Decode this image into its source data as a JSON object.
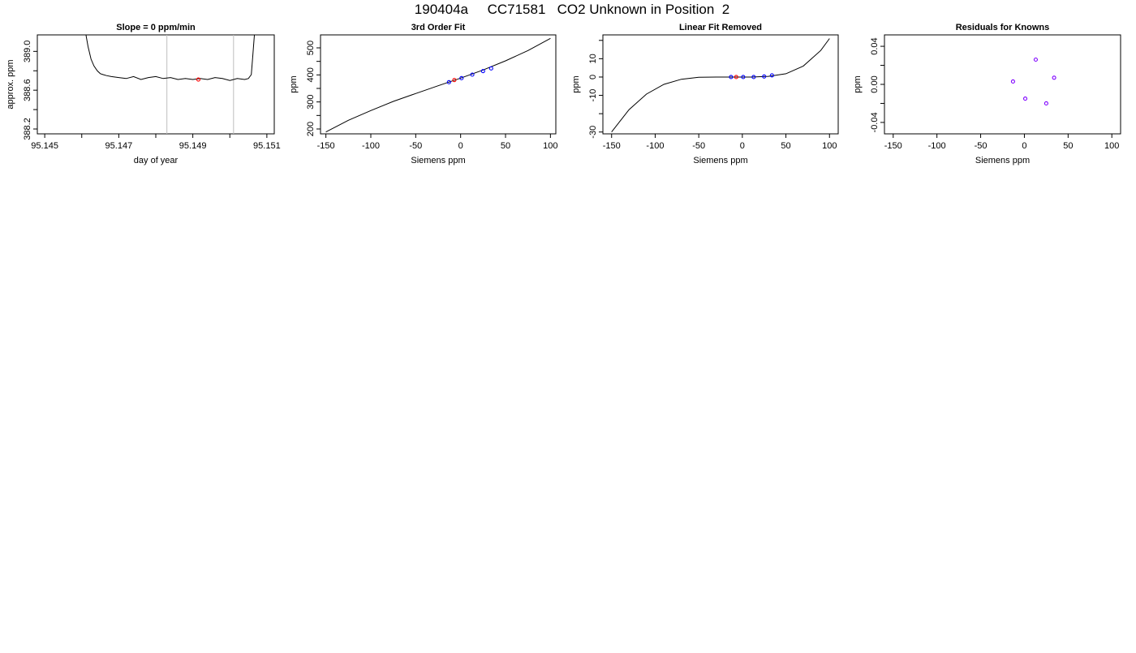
{
  "figure": {
    "title": "190404a     CC71581   CO2 Unknown in Position  2",
    "colors": {
      "axis": "#000000",
      "marker_known": "#0000ff",
      "marker_unknown": "#ff0000",
      "marker_residual": "#7f00ff",
      "guide": "#bebebe"
    }
  },
  "chart_data": [
    {
      "id": "p1",
      "type": "line",
      "title": "Slope =  0  ppm/min",
      "xlabel": "day of year",
      "ylabel": "approx. ppm",
      "xlim": [
        95.1448,
        95.1512
      ],
      "ylim": [
        388.15,
        389.17
      ],
      "x_ticks": [
        95.145,
        95.146,
        95.147,
        95.148,
        95.149,
        95.15,
        95.151
      ],
      "x_tick_labels": [
        "95.145",
        "",
        "95.147",
        "",
        "95.149",
        "",
        "95.151"
      ],
      "y_ticks": [
        388.2,
        388.4,
        388.6,
        388.8,
        389.0
      ],
      "y_tick_labels": [
        "388.2",
        "",
        "388.6",
        "",
        "389.0"
      ],
      "vlines": [
        95.1483,
        95.1501
      ],
      "series": [
        {
          "style": "line",
          "x": [
            95.1461,
            95.14617,
            95.14625,
            95.14633,
            95.14642,
            95.1465,
            95.14658,
            95.14667,
            95.1468,
            95.147,
            95.1472,
            95.1474,
            95.1476,
            95.1478,
            95.148,
            95.1482,
            95.1484,
            95.1486,
            95.1488,
            95.149,
            95.1492,
            95.1494,
            95.1496,
            95.1498,
            95.15,
            95.1502,
            95.1504,
            95.1505,
            95.15058,
            95.15062,
            95.15067
          ],
          "y": [
            389.2,
            389.05,
            388.92,
            388.85,
            388.8,
            388.77,
            388.76,
            388.75,
            388.74,
            388.73,
            388.72,
            388.74,
            388.71,
            388.73,
            388.74,
            388.72,
            388.73,
            388.71,
            388.72,
            388.71,
            388.72,
            388.71,
            388.73,
            388.72,
            388.7,
            388.72,
            388.71,
            388.72,
            388.76,
            388.95,
            389.2
          ]
        },
        {
          "style": "points",
          "x": [
            95.14915
          ],
          "y": [
            388.71
          ]
        }
      ]
    },
    {
      "id": "p2",
      "type": "scatter",
      "title": "3rd Order Fit",
      "xlabel": "Siemens ppm",
      "ylabel": "ppm",
      "xlim": [
        -156,
        106
      ],
      "ylim": [
        182,
        548
      ],
      "x_ticks": [
        -150,
        -100,
        -50,
        0,
        50,
        100
      ],
      "x_tick_labels": [
        "-150",
        "-100",
        "-50",
        "0",
        "50",
        "100"
      ],
      "y_ticks": [
        200,
        250,
        300,
        350,
        400,
        450,
        500
      ],
      "y_tick_labels": [
        "200",
        "",
        "300",
        "",
        "400",
        "",
        "500"
      ],
      "series": [
        {
          "style": "line",
          "x": [
            -150,
            -125,
            -100,
            -75,
            -50,
            -25,
            0,
            25,
            50,
            75,
            100
          ],
          "y": [
            189,
            232,
            268,
            302,
            331,
            360,
            388,
            418,
            452,
            490,
            535
          ]
        },
        {
          "style": "points",
          "role": "known",
          "x": [
            -13,
            1,
            13,
            25,
            34
          ],
          "y": [
            373,
            388,
            401,
            414,
            424
          ]
        },
        {
          "style": "points",
          "role": "unknown",
          "x": [
            -7
          ],
          "y": [
            381
          ]
        }
      ]
    },
    {
      "id": "p3",
      "type": "scatter",
      "title": "Linear Fit Removed",
      "xlabel": "Siemens ppm",
      "ylabel": "ppm",
      "xlim": [
        -160,
        110
      ],
      "ylim": [
        -31,
        23
      ],
      "x_ticks": [
        -150,
        -100,
        -50,
        0,
        50,
        100
      ],
      "x_tick_labels": [
        "-150",
        "-100",
        "-50",
        "0",
        "50",
        "100"
      ],
      "y_ticks": [
        -30,
        -20,
        -10,
        0,
        10,
        20
      ],
      "y_tick_labels": [
        "-30",
        "",
        "-10",
        "0",
        "10",
        ""
      ],
      "series": [
        {
          "style": "line",
          "x": [
            -150,
            -130,
            -110,
            -90,
            -70,
            -50,
            -30,
            -10,
            10,
            30,
            50,
            70,
            90,
            100
          ],
          "y": [
            -30,
            -17.8,
            -9.3,
            -4,
            -1.2,
            -0.1,
            0,
            0,
            0,
            0.4,
            1.8,
            6,
            14.5,
            21
          ]
        },
        {
          "style": "points",
          "role": "known",
          "x": [
            -13,
            1,
            13,
            25,
            34
          ],
          "y": [
            0,
            0,
            0,
            0.3,
            0.9
          ]
        },
        {
          "style": "points",
          "role": "unknown",
          "x": [
            -7
          ],
          "y": [
            0
          ]
        }
      ]
    },
    {
      "id": "p4",
      "type": "scatter",
      "title": "Residuals for Knowns",
      "xlabel": "Siemens ppm",
      "ylabel": "ppm",
      "xlim": [
        -160,
        110
      ],
      "ylim": [
        -0.052,
        0.052
      ],
      "x_ticks": [
        -150,
        -100,
        -50,
        0,
        50,
        100
      ],
      "x_tick_labels": [
        "-150",
        "-100",
        "-50",
        "0",
        "50",
        "100"
      ],
      "y_ticks": [
        -0.04,
        -0.02,
        0.0,
        0.02,
        0.04
      ],
      "y_tick_labels": [
        "-0.04",
        "",
        "0.00",
        "",
        "0.04"
      ],
      "series": [
        {
          "style": "points",
          "role": "residual",
          "x": [
            -13,
            1,
            13,
            25,
            34
          ],
          "y": [
            0.003,
            -0.015,
            0.026,
            -0.02,
            0.007
          ]
        }
      ]
    }
  ]
}
